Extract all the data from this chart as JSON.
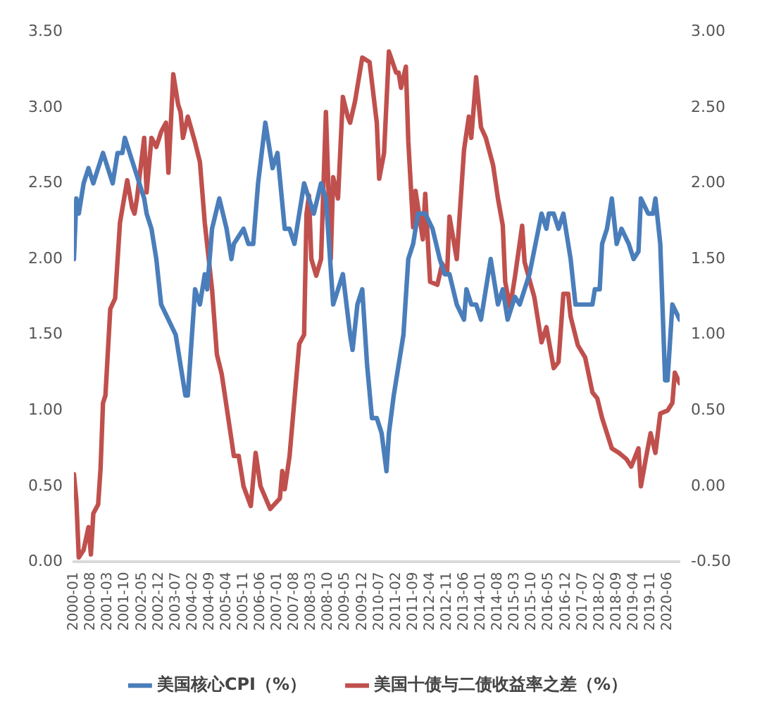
{
  "chart_data": {
    "type": "line",
    "legend": "bottom",
    "marker": "none",
    "line_style": "solid",
    "grid": false,
    "xlim": [
      "2000-01",
      "2020-11"
    ],
    "xticks": [
      "2000-01",
      "2000-08",
      "2001-03",
      "2001-10",
      "2002-05",
      "2002-12",
      "2003-07",
      "2004-02",
      "2004-09",
      "2005-04",
      "2005-11",
      "2006-06",
      "2007-01",
      "2007-08",
      "2008-03",
      "2008-10",
      "2009-05",
      "2009-12",
      "2010-07",
      "2011-02",
      "2011-09",
      "2012-04",
      "2012-11",
      "2013-06",
      "2014-01",
      "2014-08",
      "2015-03",
      "2015-10",
      "2016-05",
      "2016-12",
      "2017-07",
      "2018-02",
      "2018-09",
      "2019-04",
      "2019-11",
      "2020-06"
    ],
    "ylim": [
      0,
      3.5
    ],
    "yticks": [
      {
        "value": 0,
        "label": "0.00"
      },
      {
        "value": 0.5,
        "label": "0.50"
      },
      {
        "value": 1,
        "label": "1.00"
      },
      {
        "value": 1.5,
        "label": "1.50"
      },
      {
        "value": 2,
        "label": "2.00"
      },
      {
        "value": 2.5,
        "label": "2.50"
      },
      {
        "value": 3,
        "label": "3.00"
      },
      {
        "value": 3.5,
        "label": "3.50"
      }
    ],
    "y2lim": [
      -0.5,
      3
    ],
    "y2ticks": [
      {
        "value": -0.5,
        "label": "-0.50"
      },
      {
        "value": 0,
        "label": "0.00"
      },
      {
        "value": 0.5,
        "label": "0.50"
      },
      {
        "value": 1,
        "label": "1.00"
      },
      {
        "value": 1.5,
        "label": "1.50"
      },
      {
        "value": 2,
        "label": "2.00"
      },
      {
        "value": 2.5,
        "label": "2.50"
      },
      {
        "value": 3,
        "label": "3.00"
      }
    ],
    "series": [
      {
        "name": "美国核心CPI（%）",
        "color": "#4a7ebb",
        "x": [
          "2000-01",
          "2000-02",
          "2000-03",
          "2000-05",
          "2000-07",
          "2000-09",
          "2001-01",
          "2001-05",
          "2001-07",
          "2001-09",
          "2001-10",
          "2002-02",
          "2002-04",
          "2002-06",
          "2002-07",
          "2002-09",
          "2002-11",
          "2003-01",
          "2003-04",
          "2003-07",
          "2003-09",
          "2003-11",
          "2003-12",
          "2004-03",
          "2004-05",
          "2004-07",
          "2004-08",
          "2004-10",
          "2005-01",
          "2005-04",
          "2005-06",
          "2005-07",
          "2005-11",
          "2006-01",
          "2006-03",
          "2006-05",
          "2006-08",
          "2006-11",
          "2007-01",
          "2007-04",
          "2007-06",
          "2007-08",
          "2007-12",
          "2008-02",
          "2008-04",
          "2008-07",
          "2008-09",
          "2008-12",
          "2009-02",
          "2009-04",
          "2009-07",
          "2009-08",
          "2009-10",
          "2009-12",
          "2010-02",
          "2010-04",
          "2010-06",
          "2010-08",
          "2010-10",
          "2010-11",
          "2011-01",
          "2011-05",
          "2011-07",
          "2011-09",
          "2011-11",
          "2012-02",
          "2012-05",
          "2012-08",
          "2012-10",
          "2012-12",
          "2013-03",
          "2013-06",
          "2013-07",
          "2013-09",
          "2013-11",
          "2014-01",
          "2014-05",
          "2014-06",
          "2014-08",
          "2014-10",
          "2014-12",
          "2015-03",
          "2015-05",
          "2015-07",
          "2015-09",
          "2016-02",
          "2016-04",
          "2016-05",
          "2016-07",
          "2016-09",
          "2016-11",
          "2017-02",
          "2017-04",
          "2017-11",
          "2017-12",
          "2018-02",
          "2018-03",
          "2018-05",
          "2018-07",
          "2018-09",
          "2018-11",
          "2019-02",
          "2019-04",
          "2019-06",
          "2019-07",
          "2019-10",
          "2019-12",
          "2020-01",
          "2020-03",
          "2020-05",
          "2020-06",
          "2020-08",
          "2020-11"
        ],
        "values": [
          2.0,
          2.4,
          2.3,
          2.5,
          2.6,
          2.5,
          2.7,
          2.5,
          2.7,
          2.7,
          2.8,
          2.6,
          2.5,
          2.4,
          2.3,
          2.2,
          2.0,
          1.7,
          1.6,
          1.5,
          1.3,
          1.1,
          1.1,
          1.8,
          1.7,
          1.9,
          1.8,
          2.2,
          2.4,
          2.2,
          2.0,
          2.1,
          2.2,
          2.1,
          2.1,
          2.5,
          2.9,
          2.6,
          2.7,
          2.2,
          2.2,
          2.1,
          2.5,
          2.4,
          2.3,
          2.5,
          2.4,
          1.7,
          1.8,
          1.9,
          1.5,
          1.4,
          1.7,
          1.8,
          1.3,
          0.95,
          0.95,
          0.85,
          0.6,
          0.85,
          1.1,
          1.5,
          2.0,
          2.1,
          2.3,
          2.3,
          2.2,
          2.0,
          1.9,
          1.9,
          1.7,
          1.6,
          1.8,
          1.7,
          1.7,
          1.6,
          2.0,
          1.9,
          1.7,
          1.8,
          1.6,
          1.75,
          1.7,
          1.8,
          1.9,
          2.3,
          2.2,
          2.3,
          2.3,
          2.2,
          2.3,
          2.0,
          1.7,
          1.7,
          1.8,
          1.8,
          2.1,
          2.2,
          2.4,
          2.1,
          2.2,
          2.1,
          2.0,
          2.05,
          2.4,
          2.3,
          2.3,
          2.4,
          2.1,
          1.2,
          1.2,
          1.7,
          1.6
        ]
      },
      {
        "name": "美国十债与二债收益率之差（%）",
        "color": "#c0504d",
        "axis": "y2",
        "x": [
          "2000-01",
          "2000-02",
          "2000-03",
          "2000-05",
          "2000-07",
          "2000-08",
          "2000-09",
          "2000-11",
          "2000-12",
          "2001-01",
          "2001-02",
          "2001-04",
          "2001-06",
          "2001-08",
          "2001-11",
          "2002-01",
          "2002-02",
          "2002-03",
          "2002-06",
          "2002-07",
          "2002-09",
          "2002-11",
          "2003-01",
          "2003-03",
          "2003-04",
          "2003-06",
          "2003-08",
          "2003-09",
          "2003-10",
          "2003-12",
          "2004-03",
          "2004-05",
          "2004-07",
          "2004-10",
          "2004-12",
          "2005-02",
          "2005-06",
          "2005-07",
          "2005-09",
          "2005-11",
          "2006-02",
          "2006-04",
          "2006-06",
          "2006-10",
          "2007-02",
          "2007-03",
          "2007-04",
          "2007-06",
          "2007-08",
          "2007-10",
          "2007-12",
          "2008-01",
          "2008-02",
          "2008-03",
          "2008-05",
          "2008-07",
          "2008-09",
          "2008-11",
          "2008-12",
          "2009-02",
          "2009-04",
          "2009-06",
          "2009-07",
          "2009-09",
          "2009-12",
          "2010-03",
          "2010-06",
          "2010-07",
          "2010-09",
          "2010-11",
          "2011-02",
          "2011-03",
          "2011-04",
          "2011-06",
          "2011-07",
          "2011-09",
          "2011-10",
          "2012-01",
          "2012-02",
          "2012-04",
          "2012-07",
          "2012-09",
          "2012-11",
          "2012-12",
          "2013-03",
          "2013-06",
          "2013-08",
          "2013-09",
          "2013-11",
          "2014-01",
          "2014-03",
          "2014-06",
          "2014-08",
          "2014-10",
          "2014-11",
          "2015-01",
          "2015-03",
          "2015-06",
          "2015-07",
          "2015-11",
          "2016-02",
          "2016-04",
          "2016-07",
          "2016-09",
          "2016-11",
          "2017-01",
          "2017-02",
          "2017-05",
          "2017-08",
          "2017-11",
          "2018-01",
          "2018-03",
          "2018-07",
          "2018-10",
          "2019-01",
          "2019-03",
          "2019-06",
          "2019-07",
          "2019-09",
          "2019-11",
          "2020-01",
          "2020-03",
          "2020-06",
          "2020-08",
          "2020-09",
          "2020-11"
        ],
        "values": [
          0.08,
          -0.09,
          -0.47,
          -0.42,
          -0.27,
          -0.45,
          -0.18,
          -0.12,
          0.12,
          0.55,
          0.6,
          1.17,
          1.24,
          1.74,
          2.02,
          1.84,
          1.8,
          1.9,
          2.3,
          1.94,
          2.3,
          2.24,
          2.34,
          2.4,
          2.07,
          2.72,
          2.52,
          2.47,
          2.3,
          2.44,
          2.27,
          2.14,
          1.74,
          1.3,
          0.87,
          0.74,
          0.31,
          0.2,
          0.2,
          0.0,
          -0.13,
          0.22,
          0.0,
          -0.15,
          -0.08,
          0.1,
          -0.02,
          0.2,
          0.57,
          0.94,
          1.0,
          1.8,
          1.92,
          1.5,
          1.39,
          1.5,
          2.47,
          1.5,
          2.04,
          1.9,
          2.57,
          2.44,
          2.4,
          2.54,
          2.83,
          2.8,
          2.4,
          2.03,
          2.2,
          2.87,
          2.73,
          2.73,
          2.63,
          2.77,
          2.28,
          1.71,
          1.95,
          1.63,
          1.93,
          1.35,
          1.33,
          1.47,
          1.4,
          1.78,
          1.5,
          2.22,
          2.44,
          2.3,
          2.7,
          2.37,
          2.3,
          2.12,
          1.9,
          1.72,
          1.35,
          1.18,
          1.38,
          1.72,
          1.48,
          1.25,
          0.95,
          1.05,
          0.78,
          0.82,
          1.27,
          1.27,
          1.12,
          0.93,
          0.85,
          0.62,
          0.58,
          0.45,
          0.25,
          0.22,
          0.18,
          0.13,
          0.25,
          0.0,
          0.18,
          0.35,
          0.22,
          0.48,
          0.5,
          0.55,
          0.75,
          0.68
        ]
      }
    ]
  }
}
